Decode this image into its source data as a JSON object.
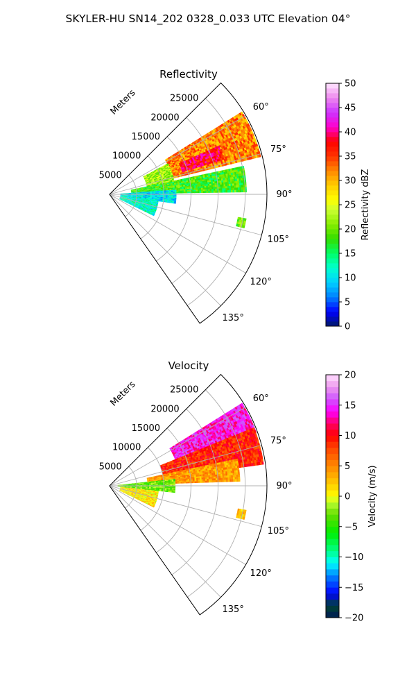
{
  "figure_title": "SKYLER-HU  SN14_202  0328_0.033 UTC Elevation 04°",
  "chart_data": [
    {
      "type": "heatmap",
      "projection": "polar-sector",
      "title": "Reflectivity",
      "radial_label": "Meters",
      "range_ticks": [
        "5000",
        "10000",
        "15000",
        "20000",
        "25000"
      ],
      "range_values": [
        5000,
        10000,
        15000,
        20000,
        25000
      ],
      "rmax": 29000,
      "azimuth_range_deg": [
        45,
        145
      ],
      "azimuth_ticks": [
        "60°",
        "75°",
        "90°",
        "105°",
        "120°",
        "135°"
      ],
      "azimuth_values": [
        60,
        75,
        90,
        105,
        120,
        135
      ],
      "colorbar": {
        "label": "Reflectivity dBZ",
        "range": [
          0,
          50
        ],
        "ticks": [
          "0",
          "5",
          "10",
          "15",
          "20",
          "25",
          "30",
          "35",
          "40",
          "45",
          "50"
        ],
        "tick_values": [
          0,
          5,
          10,
          15,
          20,
          25,
          30,
          35,
          40,
          45,
          50
        ]
      },
      "echoes": [
        {
          "az": [
            58,
            76
          ],
          "range": [
            12000,
            28500
          ],
          "value": 32
        },
        {
          "az": [
            66,
            73
          ],
          "range": [
            14000,
            22000
          ],
          "value": 38
        },
        {
          "az": [
            62,
            78
          ],
          "range": [
            7000,
            12000
          ],
          "value": 22
        },
        {
          "az": [
            78,
            89
          ],
          "range": [
            4000,
            25000
          ],
          "value": 18
        },
        {
          "az": [
            86,
            98
          ],
          "range": [
            2000,
            12000
          ],
          "value": 10
        },
        {
          "az": [
            96,
            116
          ],
          "range": [
            2000,
            9000
          ],
          "value": 12
        },
        {
          "az": [
            100,
            104
          ],
          "range": [
            24000,
            25500
          ],
          "value": 20
        }
      ]
    },
    {
      "type": "heatmap",
      "projection": "polar-sector",
      "title": "Velocity",
      "radial_label": "Meters",
      "range_ticks": [
        "5000",
        "10000",
        "15000",
        "20000",
        "25000"
      ],
      "range_values": [
        5000,
        10000,
        15000,
        20000,
        25000
      ],
      "rmax": 29000,
      "azimuth_range_deg": [
        45,
        145
      ],
      "azimuth_ticks": [
        "60°",
        "75°",
        "90°",
        "105°",
        "120°",
        "135°"
      ],
      "azimuth_values": [
        60,
        75,
        90,
        105,
        120,
        135
      ],
      "colorbar": {
        "label": "Velocity (m/s)",
        "range": [
          -20,
          20
        ],
        "ticks": [
          "−20",
          "−15",
          "−10",
          "−5",
          "0",
          "5",
          "10",
          "15",
          "20"
        ],
        "tick_values": [
          -20,
          -15,
          -10,
          -5,
          0,
          5,
          10,
          15,
          20
        ]
      },
      "echoes": [
        {
          "az": [
            58,
            70
          ],
          "range": [
            13000,
            28500
          ],
          "value": 14
        },
        {
          "az": [
            68,
            82
          ],
          "range": [
            10000,
            28500
          ],
          "value": 9
        },
        {
          "az": [
            78,
            88
          ],
          "range": [
            7000,
            24000
          ],
          "value": 4
        },
        {
          "az": [
            84,
            96
          ],
          "range": [
            1500,
            12000
          ],
          "value": -3
        },
        {
          "az": [
            96,
            116
          ],
          "range": [
            2000,
            9000
          ],
          "value": 1
        },
        {
          "az": [
            100,
            104
          ],
          "range": [
            24000,
            25500
          ],
          "value": 2
        }
      ]
    }
  ]
}
